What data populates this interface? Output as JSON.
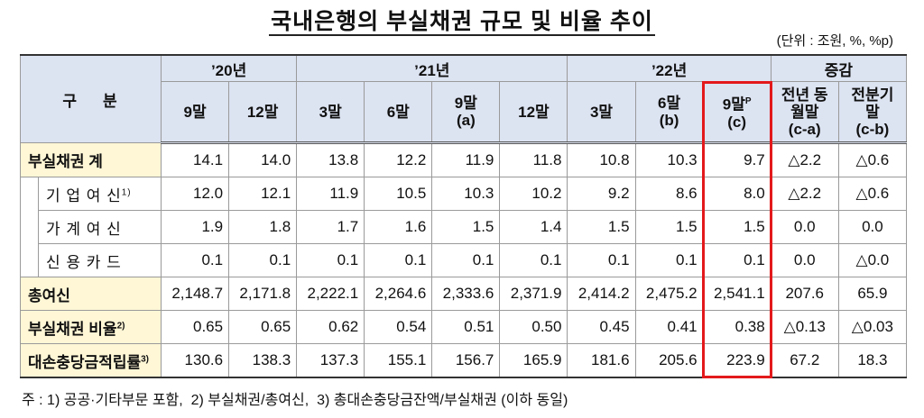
{
  "title": "국내은행의 부실채권 규모 및 비율 추이",
  "unit": "(단위 : 조원, %, %p)",
  "table": {
    "corner": "구    분",
    "groups": [
      "’20년",
      "’21년",
      "’22년",
      "증감"
    ],
    "columns": [
      {
        "label": "9말"
      },
      {
        "label": "12말"
      },
      {
        "label": "3말"
      },
      {
        "label": "6말"
      },
      {
        "label": "9말",
        "sub": "(a)"
      },
      {
        "label": "12말"
      },
      {
        "label": "3말"
      },
      {
        "label": "6말",
        "sub": "(b)"
      },
      {
        "label": "9말",
        "sup": "P",
        "sub": "(c)"
      },
      {
        "label": "전년 동월말",
        "sub": "(c-a)"
      },
      {
        "label": "전분기말",
        "sub": "(c-b)"
      }
    ],
    "rows": [
      {
        "label": "부실채권 계",
        "values": [
          "14.1",
          "14.0",
          "13.8",
          "12.2",
          "11.9",
          "11.8",
          "10.8",
          "10.3",
          "9.7",
          "△2.2",
          "△0.6"
        ],
        "items": [
          {
            "label": "기 업 여 신",
            "note": "1)",
            "values": [
              "12.0",
              "12.1",
              "11.9",
              "10.5",
              "10.3",
              "10.2",
              "9.2",
              "8.6",
              "8.0",
              "△2.2",
              "△0.6"
            ]
          },
          {
            "label": "가 계 여 신",
            "values": [
              "1.9",
              "1.8",
              "1.7",
              "1.6",
              "1.5",
              "1.4",
              "1.5",
              "1.5",
              "1.5",
              "0.0",
              "0.0"
            ]
          },
          {
            "label": "신 용 카 드",
            "values": [
              "0.1",
              "0.1",
              "0.1",
              "0.1",
              "0.1",
              "0.1",
              "0.1",
              "0.1",
              "0.1",
              "0.0",
              "△0.0"
            ]
          }
        ]
      },
      {
        "label": "총여신",
        "values": [
          "2,148.7",
          "2,171.8",
          "2,222.1",
          "2,264.6",
          "2,333.6",
          "2,371.9",
          "2,414.2",
          "2,475.2",
          "2,541.1",
          "207.6",
          "65.9"
        ]
      },
      {
        "label": "부실채권 비율",
        "note": "2)",
        "values": [
          "0.65",
          "0.65",
          "0.62",
          "0.54",
          "0.51",
          "0.50",
          "0.45",
          "0.41",
          "0.38",
          "△0.13",
          "△0.03"
        ]
      },
      {
        "label": "대손충당금적립률",
        "note": "3)",
        "values": [
          "130.6",
          "138.3",
          "137.3",
          "155.1",
          "156.7",
          "165.9",
          "181.6",
          "205.6",
          "223.9",
          "67.2",
          "18.3"
        ]
      }
    ]
  },
  "footnote": "주 : 1) 공공·기타부문 포함,  2) 부실채권/총여신,  3) 총대손충당금잔액/부실채권 (이하 동일)"
}
